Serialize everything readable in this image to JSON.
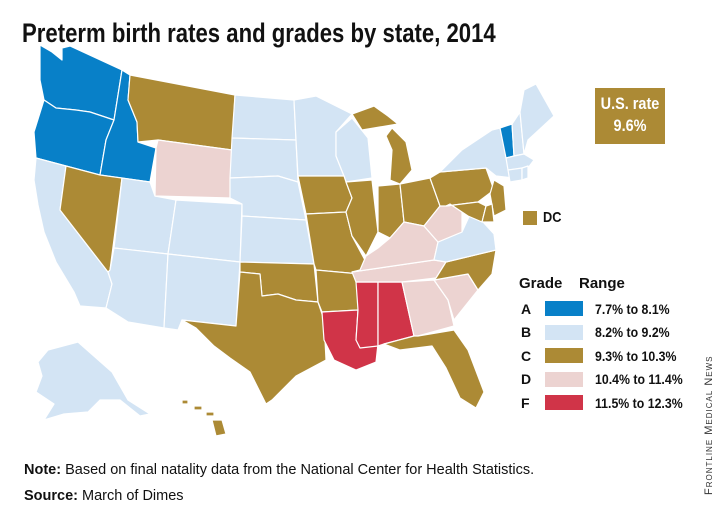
{
  "title": "Preterm birth rates and grades by state, 2014",
  "us_rate": {
    "label": "U.S. rate",
    "value": "9.6%"
  },
  "dc_label": "DC",
  "legend": {
    "grade_header": "Grade",
    "range_header": "Range",
    "items": [
      {
        "grade": "A",
        "range": "7.7% to 8.1%",
        "color": "#0880c8"
      },
      {
        "grade": "B",
        "range": "8.2% to 9.2%",
        "color": "#d3e4f4"
      },
      {
        "grade": "C",
        "range": "9.3% to 10.3%",
        "color": "#ac8a35"
      },
      {
        "grade": "D",
        "range": "10.4% to 11.4%",
        "color": "#ecd3d1"
      },
      {
        "grade": "F",
        "range": "11.5% to 12.3%",
        "color": "#d03448"
      }
    ]
  },
  "state_grades": {
    "WA": "A",
    "OR": "A",
    "ID": "A",
    "VT": "A",
    "CA": "B",
    "UT": "B",
    "AZ": "B",
    "NM": "B",
    "CO": "B",
    "ND": "B",
    "SD": "B",
    "NE": "B",
    "KS": "B",
    "MN": "B",
    "WI": "B",
    "AK": "B",
    "NY": "B",
    "VA": "B",
    "ME": "B",
    "NH": "B",
    "MA": "B",
    "CT": "B",
    "RI": "B",
    "MT": "C",
    "NV": "C",
    "IA": "C",
    "MO": "C",
    "IL": "C",
    "IN": "C",
    "OH": "C",
    "MI": "C",
    "PA": "C",
    "NJ": "C",
    "MD": "C",
    "DE": "C",
    "NC": "C",
    "AR": "C",
    "OK": "C",
    "TX": "C",
    "FL": "C",
    "HI": "C",
    "DC": "C",
    "WY": "D",
    "WV": "D",
    "KY": "D",
    "TN": "D",
    "GA": "D",
    "SC": "D",
    "LA": "F",
    "MS": "F",
    "AL": "F"
  },
  "note": {
    "label": "Note:",
    "text": " Based on final natality data from the National Center for Health Statistics."
  },
  "source": {
    "label": "Source:",
    "text": " March of Dimes"
  },
  "credit": "Frontline Medical News"
}
